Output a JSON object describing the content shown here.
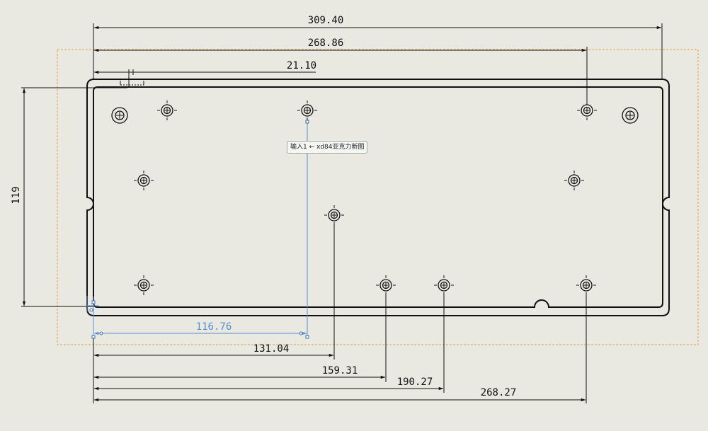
{
  "dimensions": {
    "overall_width": "309.40",
    "right_holes": "268.86",
    "left_hole": "21.10",
    "height": "119",
    "selected": "116.76",
    "center_hole": "131.04",
    "hole_a": "159.31",
    "hole_b": "190.27",
    "hole_c": "268.27"
  },
  "tooltip": {
    "text": "输入1 ← xd84亚克力新图"
  },
  "colors": {
    "background": "#e9e9e1",
    "geometry": "#111111",
    "selection": "#5a8fd0",
    "bounding_box": "#e0a050"
  }
}
